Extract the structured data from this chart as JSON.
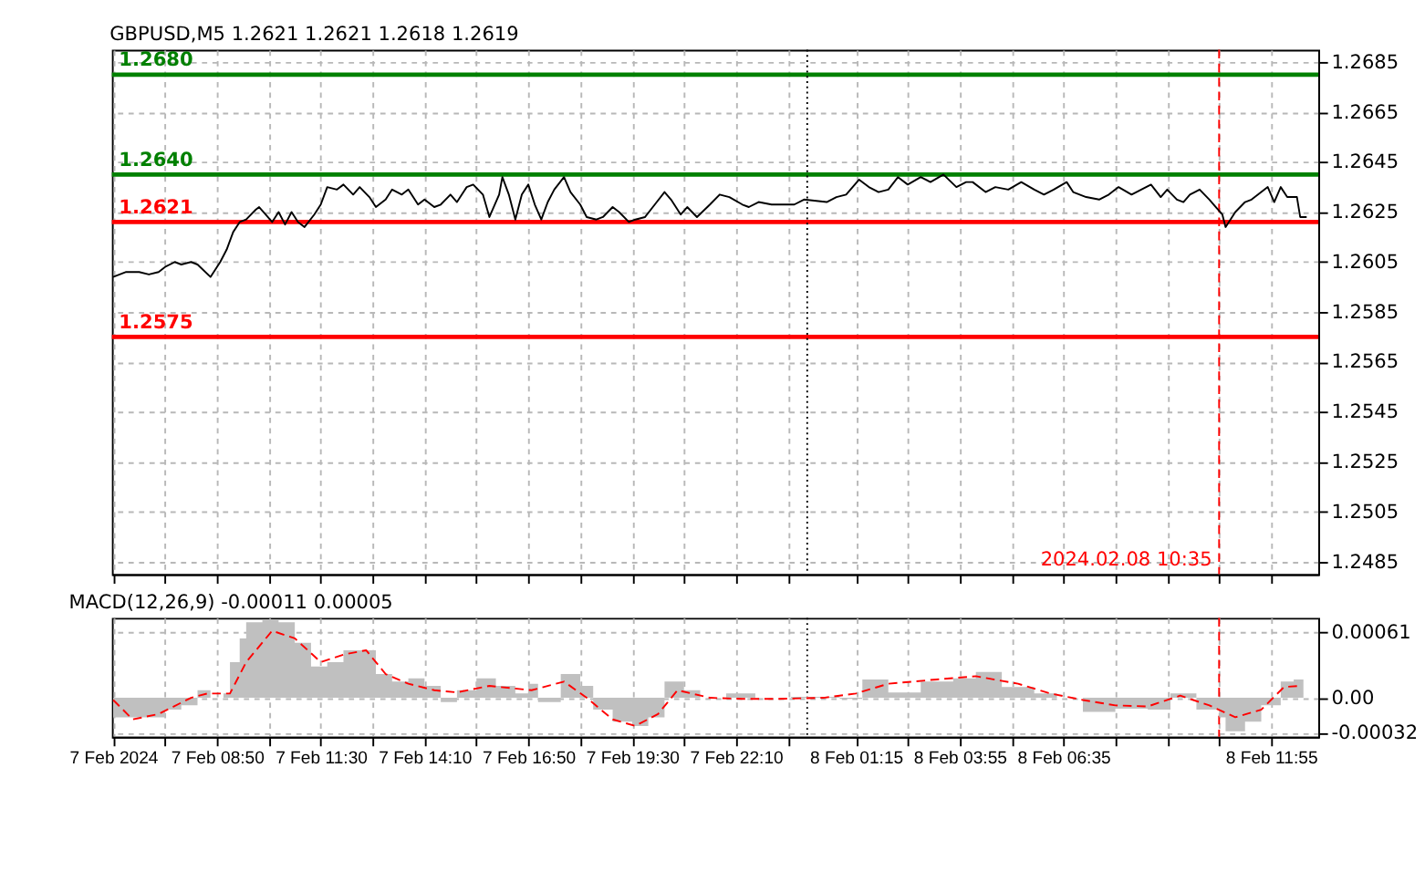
{
  "chart_data": [
    {
      "type": "line",
      "title": "GBPUSD,M5  1.2621 1.2621 1.2618 1.2619",
      "series": [
        {
          "color": "#000000",
          "x": [
            "2024-02-07T06:10",
            "2024-02-07T06:30",
            "2024-02-07T06:50",
            "2024-02-07T07:05",
            "2024-02-07T07:20",
            "2024-02-07T07:30",
            "2024-02-07T07:45",
            "2024-02-07T07:55",
            "2024-02-07T08:10",
            "2024-02-07T08:20",
            "2024-02-07T08:40",
            "2024-02-07T08:55",
            "2024-02-07T09:05",
            "2024-02-07T09:15",
            "2024-02-07T09:25",
            "2024-02-07T09:35",
            "2024-02-07T09:50",
            "2024-02-07T09:55",
            "2024-02-07T10:05",
            "2024-02-07T10:15",
            "2024-02-07T10:25",
            "2024-02-07T10:35",
            "2024-02-07T10:45",
            "2024-02-07T10:55",
            "2024-02-07T11:05",
            "2024-02-07T11:20",
            "2024-02-07T11:30",
            "2024-02-07T11:40",
            "2024-02-07T11:55",
            "2024-02-07T12:05",
            "2024-02-07T12:20",
            "2024-02-07T12:30",
            "2024-02-07T12:45",
            "2024-02-07T12:55",
            "2024-02-07T13:10",
            "2024-02-07T13:20",
            "2024-02-07T13:35",
            "2024-02-07T13:45",
            "2024-02-07T14:00",
            "2024-02-07T14:10",
            "2024-02-07T14:25",
            "2024-02-07T14:35",
            "2024-02-07T14:50",
            "2024-02-07T15:00",
            "2024-02-07T15:15",
            "2024-02-07T15:25",
            "2024-02-07T15:40",
            "2024-02-07T15:50",
            "2024-02-07T16:05",
            "2024-02-07T16:10",
            "2024-02-07T16:20",
            "2024-02-07T16:30",
            "2024-02-07T16:40",
            "2024-02-07T16:50",
            "2024-02-07T17:00",
            "2024-02-07T17:10",
            "2024-02-07T17:20",
            "2024-02-07T17:30",
            "2024-02-07T17:45",
            "2024-02-07T17:55",
            "2024-02-07T18:10",
            "2024-02-07T18:20",
            "2024-02-07T18:35",
            "2024-02-07T18:45",
            "2024-02-07T19:00",
            "2024-02-07T19:10",
            "2024-02-07T19:25",
            "2024-02-07T19:35",
            "2024-02-07T19:50",
            "2024-02-07T20:05",
            "2024-02-07T20:20",
            "2024-02-07T20:30",
            "2024-02-07T20:45",
            "2024-02-07T20:55",
            "2024-02-07T21:10",
            "2024-02-07T21:30",
            "2024-02-07T21:45",
            "2024-02-07T22:00",
            "2024-02-07T22:20",
            "2024-02-07T22:30",
            "2024-02-07T22:45",
            "2024-02-07T23:05",
            "2024-02-07T23:20",
            "2024-02-07T23:40",
            "2024-02-07T23:55",
            "2024-02-08T00:30",
            "2024-02-08T00:45",
            "2024-02-08T01:00",
            "2024-02-08T01:20",
            "2024-02-08T01:35",
            "2024-02-08T01:50",
            "2024-02-08T02:05",
            "2024-02-08T02:20",
            "2024-02-08T02:35",
            "2024-02-08T02:55",
            "2024-02-08T03:10",
            "2024-02-08T03:30",
            "2024-02-08T03:50",
            "2024-02-08T04:05",
            "2024-02-08T04:15",
            "2024-02-08T04:35",
            "2024-02-08T04:50",
            "2024-02-08T05:10",
            "2024-02-08T05:30",
            "2024-02-08T05:50",
            "2024-02-08T06:05",
            "2024-02-08T06:20",
            "2024-02-08T06:40",
            "2024-02-08T06:50",
            "2024-02-08T07:10",
            "2024-02-08T07:30",
            "2024-02-08T07:45",
            "2024-02-08T08:00",
            "2024-02-08T08:20",
            "2024-02-08T08:35",
            "2024-02-08T08:50",
            "2024-02-08T09:05",
            "2024-02-08T09:15",
            "2024-02-08T09:30",
            "2024-02-08T09:40",
            "2024-02-08T09:50",
            "2024-02-08T10:05",
            "2024-02-08T10:20",
            "2024-02-08T10:30",
            "2024-02-08T10:40",
            "2024-02-08T10:45",
            "2024-02-08T11:00",
            "2024-02-08T11:15",
            "2024-02-08T11:25",
            "2024-02-08T11:40",
            "2024-02-08T11:50",
            "2024-02-08T12:00",
            "2024-02-08T12:10",
            "2024-02-08T12:20",
            "2024-02-08T12:35",
            "2024-02-08T12:40",
            "2024-02-08T12:50"
          ],
          "values": [
            1.2599,
            1.2601,
            1.2601,
            1.26,
            1.2601,
            1.2603,
            1.2605,
            1.2604,
            1.2605,
            1.2604,
            1.2599,
            1.2605,
            1.261,
            1.2617,
            1.2621,
            1.2622,
            1.2626,
            1.2627,
            1.2624,
            1.2621,
            1.2625,
            1.262,
            1.2625,
            1.2621,
            1.2619,
            1.2624,
            1.2628,
            1.2635,
            1.2634,
            1.2636,
            1.2632,
            1.2635,
            1.2631,
            1.2627,
            1.263,
            1.2634,
            1.2632,
            1.2634,
            1.2628,
            1.263,
            1.2627,
            1.2628,
            1.2632,
            1.2629,
            1.2635,
            1.2636,
            1.2632,
            1.2623,
            1.2632,
            1.2639,
            1.2632,
            1.2622,
            1.2632,
            1.2636,
            1.2628,
            1.2622,
            1.2629,
            1.2634,
            1.2639,
            1.2633,
            1.2628,
            1.2623,
            1.2622,
            1.2623,
            1.2627,
            1.2625,
            1.2621,
            1.2622,
            1.2623,
            1.2628,
            1.2633,
            1.263,
            1.2624,
            1.2627,
            1.2623,
            1.2628,
            1.2632,
            1.2631,
            1.2628,
            1.2627,
            1.2629,
            1.2628,
            1.2628,
            1.2628,
            1.263,
            1.2629,
            1.2631,
            1.2632,
            1.2638,
            1.2635,
            1.2633,
            1.2634,
            1.2639,
            1.2636,
            1.2639,
            1.2637,
            1.264,
            1.2635,
            1.2637,
            1.2637,
            1.2633,
            1.2635,
            1.2634,
            1.2637,
            1.2634,
            1.2632,
            1.2634,
            1.2637,
            1.2633,
            1.2631,
            1.263,
            1.2632,
            1.2635,
            1.2632,
            1.2634,
            1.2636,
            1.2631,
            1.2634,
            1.263,
            1.2629,
            1.2632,
            1.2634,
            1.263,
            1.2627,
            1.2624,
            1.2619,
            1.2625,
            1.2629,
            1.263,
            1.2633,
            1.2635,
            1.2629,
            1.2635,
            1.2631,
            1.2631,
            1.2623,
            1.2623
          ]
        }
      ],
      "xlim": [
        "2024-02-07T06:08",
        "2024-02-08T13:08"
      ],
      "xticks": [
        {
          "value": "2024-02-07T06:10",
          "label": null
        },
        {
          "value": "2024-02-07T07:30",
          "label": null
        },
        {
          "value": "2024-02-07T08:50",
          "label": null
        },
        {
          "value": "2024-02-07T10:10",
          "label": null
        },
        {
          "value": "2024-02-07T11:30",
          "label": null
        },
        {
          "value": "2024-02-07T12:50",
          "label": null
        },
        {
          "value": "2024-02-07T14:10",
          "label": null
        },
        {
          "value": "2024-02-07T15:30",
          "label": null
        },
        {
          "value": "2024-02-07T16:50",
          "label": null
        },
        {
          "value": "2024-02-07T18:10",
          "label": null
        },
        {
          "value": "2024-02-07T19:30",
          "label": null
        },
        {
          "value": "2024-02-07T20:50",
          "label": null
        },
        {
          "value": "2024-02-07T22:10",
          "label": null
        },
        {
          "value": "2024-02-07T23:30",
          "label": null
        },
        {
          "value": "2024-02-08T01:15",
          "label": null
        },
        {
          "value": "2024-02-08T02:35",
          "label": null
        },
        {
          "value": "2024-02-08T03:55",
          "label": null
        },
        {
          "value": "2024-02-08T05:15",
          "label": null
        },
        {
          "value": "2024-02-08T06:35",
          "label": null
        },
        {
          "value": "2024-02-08T07:55",
          "label": null
        },
        {
          "value": "2024-02-08T09:15",
          "label": null
        },
        {
          "value": "2024-02-08T10:35",
          "label": null
        },
        {
          "value": "2024-02-08T11:55",
          "label": null
        }
      ],
      "ylim": [
        1.248,
        1.269
      ],
      "yticks": [
        1.2685,
        1.2665,
        1.2645,
        1.2625,
        1.2605,
        1.2585,
        1.2565,
        1.2545,
        1.2525,
        1.2505,
        1.2485
      ],
      "ref_lines": [
        {
          "axis": "y",
          "value": 1.268,
          "label": "1.2680",
          "color": "#008000"
        },
        {
          "axis": "y",
          "value": 1.264,
          "label": "1.2640",
          "color": "#008000"
        },
        {
          "axis": "y",
          "value": 1.2621,
          "label": "1.2621",
          "color": "#ff0000"
        },
        {
          "axis": "y",
          "value": 1.2575,
          "label": "1.2575",
          "color": "#ff0000"
        },
        {
          "axis": "x",
          "value": "2024-02-08T00:00",
          "color": "#000000",
          "line_style": "dotted"
        },
        {
          "axis": "x",
          "value": "2024-02-08T10:35",
          "label": "2024.02.08 10:35",
          "color": "#ff0000",
          "line_style": "dashed"
        }
      ],
      "grid": true,
      "tick_labels": "y"
    },
    {
      "type": "area",
      "title": "MACD(12,26,9) -0.00011 0.00005",
      "series": [
        {
          "type": "area",
          "color": "#c0c0c0",
          "x": [
            "2024-02-07T06:10",
            "2024-02-07T06:55",
            "2024-02-07T07:30",
            "2024-02-07T07:55",
            "2024-02-07T08:20",
            "2024-02-07T08:40",
            "2024-02-07T09:00",
            "2024-02-07T09:10",
            "2024-02-07T09:25",
            "2024-02-07T09:35",
            "2024-02-07T10:00",
            "2024-02-07T10:25",
            "2024-02-07T10:50",
            "2024-02-07T11:15",
            "2024-02-07T11:40",
            "2024-02-07T12:05",
            "2024-02-07T12:30",
            "2024-02-07T12:55",
            "2024-02-07T13:20",
            "2024-02-07T13:45",
            "2024-02-07T14:10",
            "2024-02-07T14:35",
            "2024-02-07T15:00",
            "2024-02-07T15:30",
            "2024-02-07T16:00",
            "2024-02-07T16:30",
            "2024-02-07T16:50",
            "2024-02-07T17:05",
            "2024-02-07T17:40",
            "2024-02-07T18:10",
            "2024-02-07T18:30",
            "2024-02-07T19:00",
            "2024-02-07T19:30",
            "2024-02-07T19:55",
            "2024-02-07T20:20",
            "2024-02-07T20:50",
            "2024-02-07T21:15",
            "2024-02-07T21:55",
            "2024-02-07T22:40",
            "2024-02-07T23:35",
            "2024-02-08T00:50",
            "2024-02-08T01:25",
            "2024-02-08T02:05",
            "2024-02-08T02:55",
            "2024-02-08T03:45",
            "2024-02-08T04:20",
            "2024-02-08T05:00",
            "2024-02-08T05:50",
            "2024-02-08T06:25",
            "2024-02-08T07:05",
            "2024-02-08T07:55",
            "2024-02-08T08:45",
            "2024-02-08T09:20",
            "2024-02-08T10:00",
            "2024-02-08T10:35",
            "2024-02-08T10:45",
            "2024-02-08T11:15",
            "2024-02-08T11:40",
            "2024-02-08T12:10",
            "2024-02-08T12:30",
            "2024-02-08T12:45"
          ],
          "values": [
            -0.00018,
            -0.00018,
            -0.00011,
            -7e-05,
            7e-05,
            0,
            4e-05,
            0.00033,
            0.00055,
            0.0007,
            0.00072,
            0.0007,
            0.00051,
            0.00029,
            0.00033,
            0.00044,
            0.00044,
            0.00022,
            0.00015,
            0.00018,
            0.00011,
            -4e-05,
            7e-05,
            0.00018,
            0.00011,
            4e-05,
            0.00013,
            -4e-05,
            0.00022,
            0.00011,
            -0.00011,
            -0.00022,
            -0.00026,
            -0.00018,
            0.00015,
            7e-05,
            0,
            4e-05,
            0,
            1e-05,
            -1e-05,
            0.00017,
            5e-05,
            0.00015,
            0.00018,
            0.00024,
            0.0001,
            4e-05,
            0,
            -0.00013,
            -0.0001,
            -0.00011,
            4e-05,
            -0.00011,
            -0.00018,
            -0.00031,
            -0.00022,
            -7e-05,
            0.00015,
            0.00017,
            -0.00011
          ]
        },
        {
          "type": "line",
          "color": "#ff0000",
          "line_style": "dashed",
          "x": [
            "2024-02-07T06:10",
            "2024-02-07T06:40",
            "2024-02-07T07:20",
            "2024-02-07T08:10",
            "2024-02-07T08:35",
            "2024-02-07T09:10",
            "2024-02-07T09:35",
            "2024-02-07T10:15",
            "2024-02-07T10:50",
            "2024-02-07T11:30",
            "2024-02-07T12:05",
            "2024-02-07T12:40",
            "2024-02-07T13:10",
            "2024-02-07T13:45",
            "2024-02-07T14:25",
            "2024-02-07T15:00",
            "2024-02-07T15:50",
            "2024-02-07T16:55",
            "2024-02-07T17:45",
            "2024-02-07T18:20",
            "2024-02-07T19:00",
            "2024-02-07T19:35",
            "2024-02-07T20:10",
            "2024-02-07T20:40",
            "2024-02-07T21:30",
            "2024-02-07T22:20",
            "2024-02-07T23:10",
            "2024-02-08T00:25",
            "2024-02-08T01:15",
            "2024-02-08T02:05",
            "2024-02-08T03:20",
            "2024-02-08T04:20",
            "2024-02-08T05:25",
            "2024-02-08T06:15",
            "2024-02-08T07:05",
            "2024-02-08T07:55",
            "2024-02-08T08:45",
            "2024-02-08T09:35",
            "2024-02-08T10:20",
            "2024-02-08T11:00",
            "2024-02-08T11:40",
            "2024-02-08T12:15",
            "2024-02-08T12:40"
          ],
          "values": [
            -2e-05,
            -0.0002,
            -0.00015,
            0,
            4e-05,
            4e-05,
            0.00033,
            0.00062,
            0.00055,
            0.00033,
            0.0004,
            0.00044,
            0.00022,
            0.00013,
            7e-05,
            5e-05,
            0.00011,
            7e-05,
            0.00015,
            0,
            -0.0002,
            -0.00026,
            -0.00015,
            7e-05,
            0,
            -1e-05,
            -1e-05,
            0,
            4e-05,
            0.00013,
            0.00017,
            0.0002,
            0.00013,
            4e-05,
            -2e-05,
            -7e-05,
            -8e-05,
            2e-05,
            -7e-05,
            -0.00018,
            -0.00011,
            0.0001,
            0.00011
          ]
        }
      ],
      "xlim": [
        "2024-02-07T06:08",
        "2024-02-08T13:08"
      ],
      "xticks": [
        {
          "value": "2024-02-07T06:10",
          "label": "7 Feb 2024"
        },
        {
          "value": "2024-02-07T07:30",
          "label": null
        },
        {
          "value": "2024-02-07T08:50",
          "label": "7 Feb 08:50"
        },
        {
          "value": "2024-02-07T10:10",
          "label": null
        },
        {
          "value": "2024-02-07T11:30",
          "label": "7 Feb 11:30"
        },
        {
          "value": "2024-02-07T12:50",
          "label": null
        },
        {
          "value": "2024-02-07T14:10",
          "label": "7 Feb 14:10"
        },
        {
          "value": "2024-02-07T15:30",
          "label": null
        },
        {
          "value": "2024-02-07T16:50",
          "label": "7 Feb 16:50"
        },
        {
          "value": "2024-02-07T18:10",
          "label": null
        },
        {
          "value": "2024-02-07T19:30",
          "label": "7 Feb 19:30"
        },
        {
          "value": "2024-02-07T20:50",
          "label": null
        },
        {
          "value": "2024-02-07T22:10",
          "label": "7 Feb 22:10"
        },
        {
          "value": "2024-02-07T23:30",
          "label": null
        },
        {
          "value": "2024-02-08T01:15",
          "label": "8 Feb 01:15"
        },
        {
          "value": "2024-02-08T02:35",
          "label": null
        },
        {
          "value": "2024-02-08T03:55",
          "label": "8 Feb 03:55"
        },
        {
          "value": "2024-02-08T05:15",
          "label": null
        },
        {
          "value": "2024-02-08T06:35",
          "label": "8 Feb 06:35"
        },
        {
          "value": "2024-02-08T07:55",
          "label": null
        },
        {
          "value": "2024-02-08T09:15",
          "label": null
        },
        {
          "value": "2024-02-08T10:35",
          "label": null
        },
        {
          "value": "2024-02-08T11:55",
          "label": "8 Feb 11:55"
        }
      ],
      "ylim": [
        -0.00036,
        0.00074
      ],
      "yticks": [
        0.00061,
        {
          "value": 0,
          "label": "0.00"
        },
        -0.00032
      ],
      "ref_lines": [
        {
          "axis": "x",
          "value": "2024-02-08T00:00",
          "color": "#000000",
          "line_style": "dotted"
        },
        {
          "axis": "x",
          "value": "2024-02-08T10:35",
          "color": "#ff0000",
          "line_style": "dashed"
        }
      ],
      "grid": true
    }
  ]
}
